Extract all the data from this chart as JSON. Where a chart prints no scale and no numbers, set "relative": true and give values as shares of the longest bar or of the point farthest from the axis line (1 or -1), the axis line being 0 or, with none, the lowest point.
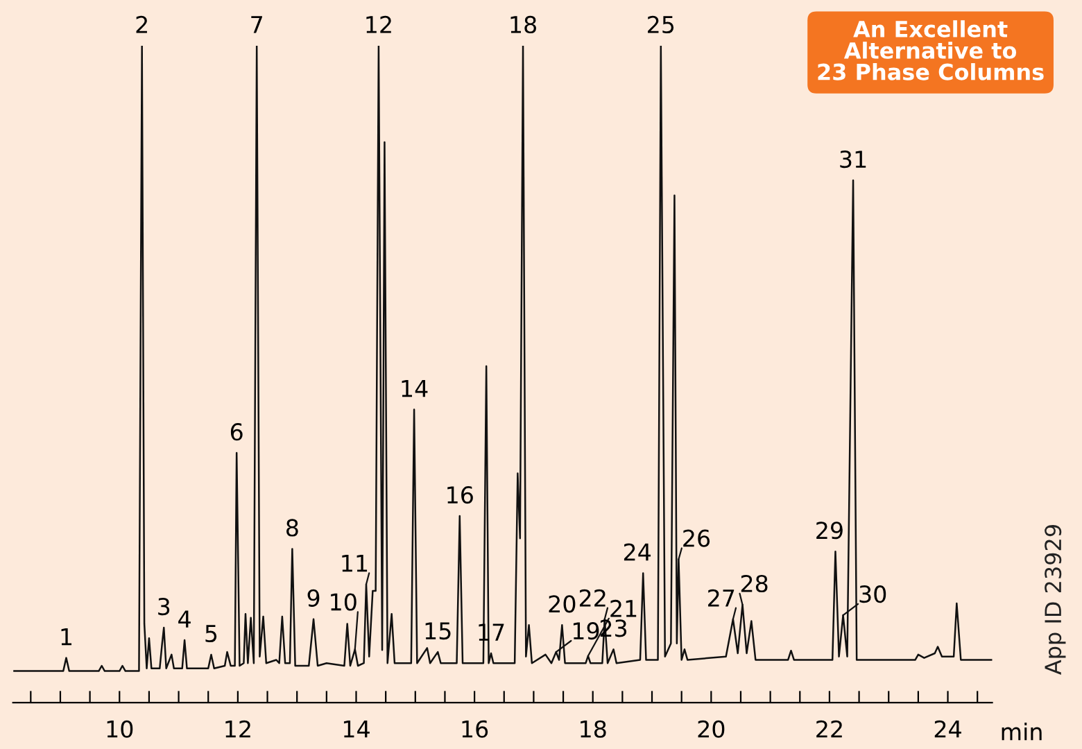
{
  "chart_data": {
    "type": "line",
    "relative": true,
    "xlabel": "min",
    "color": "#111111",
    "grid": false,
    "legend": false,
    "marker": "none",
    "line_style": "solid",
    "xlim": [
      8.2,
      24.75
    ],
    "xticks": [
      {
        "value": 8.5,
        "label": null
      },
      {
        "value": 9,
        "label": null
      },
      {
        "value": 9.5,
        "label": null
      },
      10,
      {
        "value": 10.5,
        "label": null
      },
      {
        "value": 11,
        "label": null
      },
      {
        "value": 11.5,
        "label": null
      },
      12,
      {
        "value": 12.5,
        "label": null
      },
      {
        "value": 13,
        "label": null
      },
      {
        "value": 13.5,
        "label": null
      },
      14,
      {
        "value": 14.5,
        "label": null
      },
      {
        "value": 15,
        "label": null
      },
      {
        "value": 15.5,
        "label": null
      },
      16,
      {
        "value": 16.5,
        "label": null
      },
      {
        "value": 17,
        "label": null
      },
      {
        "value": 17.5,
        "label": null
      },
      18,
      {
        "value": 18.5,
        "label": null
      },
      {
        "value": 19,
        "label": null
      },
      {
        "value": 19.5,
        "label": null
      },
      20,
      {
        "value": 20.5,
        "label": null
      },
      {
        "value": 21,
        "label": null
      },
      {
        "value": 21.5,
        "label": null
      },
      22,
      {
        "value": 22.5,
        "label": null
      },
      {
        "value": 23,
        "label": null
      },
      {
        "value": 23.5,
        "label": null
      },
      24,
      {
        "value": 24.5,
        "label": null
      }
    ],
    "x": [
      8.22,
      9.05,
      9.1,
      9.15,
      9.65,
      9.7,
      9.75,
      10.0,
      10.05,
      10.1,
      10.33,
      10.38,
      10.42,
      10.46,
      10.5,
      10.54,
      10.68,
      10.72,
      10.75,
      10.79,
      10.88,
      10.92,
      11.06,
      11.1,
      11.14,
      11.5,
      11.55,
      11.6,
      11.78,
      11.82,
      11.88,
      11.95,
      11.98,
      12.03,
      12.1,
      12.13,
      12.17,
      12.22,
      12.27,
      12.32,
      12.37,
      12.43,
      12.48,
      12.65,
      12.7,
      12.75,
      12.8,
      12.88,
      12.92,
      12.97,
      13.2,
      13.28,
      13.35,
      13.5,
      13.8,
      13.85,
      13.9,
      13.98,
      14.03,
      14.13,
      14.17,
      14.22,
      14.28,
      14.33,
      14.38,
      14.44,
      14.48,
      14.53,
      14.6,
      14.65,
      14.93,
      14.98,
      15.03,
      15.2,
      15.25,
      15.38,
      15.43,
      15.7,
      15.75,
      15.8,
      16.15,
      16.2,
      16.24,
      16.28,
      16.32,
      16.68,
      16.73,
      16.77,
      16.82,
      16.87,
      16.92,
      16.97,
      17.2,
      17.3,
      17.38,
      17.43,
      17.48,
      17.53,
      17.88,
      17.92,
      17.96,
      18.16,
      18.2,
      18.25,
      18.35,
      18.4,
      18.8,
      18.85,
      18.9,
      19.1,
      19.15,
      19.22,
      19.32,
      19.38,
      19.42,
      19.45,
      19.5,
      19.55,
      19.6,
      20.25,
      20.37,
      20.45,
      20.53,
      20.6,
      20.68,
      20.75,
      21.3,
      21.35,
      21.4,
      22.05,
      22.1,
      22.16,
      22.23,
      22.3,
      22.4,
      22.46,
      23.45,
      23.5,
      23.6,
      23.78,
      23.83,
      23.9,
      24.1,
      24.15,
      24.22,
      24.74
    ],
    "values": [
      0.048,
      0.048,
      0.068,
      0.048,
      0.048,
      0.056,
      0.048,
      0.048,
      0.056,
      0.048,
      0.048,
      1.0,
      0.12,
      0.052,
      0.098,
      0.052,
      0.052,
      0.089,
      0.114,
      0.052,
      0.073,
      0.052,
      0.052,
      0.095,
      0.052,
      0.052,
      0.073,
      0.052,
      0.056,
      0.077,
      0.056,
      0.056,
      0.38,
      0.056,
      0.06,
      0.135,
      0.06,
      0.129,
      0.06,
      1.0,
      0.07,
      0.131,
      0.06,
      0.065,
      0.06,
      0.131,
      0.06,
      0.06,
      0.234,
      0.056,
      0.056,
      0.127,
      0.056,
      0.06,
      0.056,
      0.12,
      0.056,
      0.081,
      0.056,
      0.06,
      0.18,
      0.07,
      0.17,
      0.17,
      1.0,
      0.08,
      0.853,
      0.06,
      0.135,
      0.06,
      0.06,
      0.446,
      0.06,
      0.083,
      0.06,
      0.077,
      0.06,
      0.06,
      0.284,
      0.06,
      0.06,
      0.512,
      0.06,
      0.075,
      0.06,
      0.06,
      0.349,
      0.25,
      1.0,
      0.07,
      0.118,
      0.06,
      0.073,
      0.06,
      0.077,
      0.065,
      0.118,
      0.06,
      0.06,
      0.071,
      0.06,
      0.06,
      0.127,
      0.06,
      0.081,
      0.06,
      0.065,
      0.197,
      0.065,
      0.065,
      1.0,
      0.07,
      0.09,
      0.772,
      0.09,
      0.218,
      0.065,
      0.081,
      0.065,
      0.07,
      0.127,
      0.075,
      0.149,
      0.075,
      0.124,
      0.065,
      0.065,
      0.079,
      0.065,
      0.065,
      0.23,
      0.07,
      0.133,
      0.07,
      0.795,
      0.065,
      0.065,
      0.073,
      0.068,
      0.075,
      0.085,
      0.07,
      0.07,
      0.151,
      0.065,
      0.065
    ],
    "annotations": [
      {
        "text": "1",
        "x": 9.1,
        "y": 0.068
      },
      {
        "text": "2",
        "x": 10.38,
        "y": 1.0
      },
      {
        "text": "3",
        "x": 10.75,
        "y": 0.114
      },
      {
        "text": "4",
        "x": 11.1,
        "y": 0.095
      },
      {
        "text": "5",
        "x": 11.55,
        "y": 0.073
      },
      {
        "text": "6",
        "x": 11.98,
        "y": 0.38
      },
      {
        "text": "7",
        "x": 12.32,
        "y": 1.0
      },
      {
        "text": "8",
        "x": 12.92,
        "y": 0.234
      },
      {
        "text": "9",
        "x": 13.28,
        "y": 0.127
      },
      {
        "text": "10",
        "x": 13.98,
        "y": 0.081
      },
      {
        "text": "11",
        "x": 14.17,
        "y": 0.18
      },
      {
        "text": "12",
        "x": 14.38,
        "y": 1.0
      },
      {
        "text": "14",
        "x": 14.98,
        "y": 0.446
      },
      {
        "text": "15",
        "x": 15.38,
        "y": 0.077
      },
      {
        "text": "16",
        "x": 15.75,
        "y": 0.284
      },
      {
        "text": "17",
        "x": 16.28,
        "y": 0.075
      },
      {
        "text": "18",
        "x": 16.82,
        "y": 1.0
      },
      {
        "text": "19",
        "x": 17.38,
        "y": 0.077
      },
      {
        "text": "20",
        "x": 17.48,
        "y": 0.118
      },
      {
        "text": "21",
        "x": 17.92,
        "y": 0.071
      },
      {
        "text": "22",
        "x": 18.2,
        "y": 0.127
      },
      {
        "text": "23",
        "x": 18.35,
        "y": 0.081
      },
      {
        "text": "24",
        "x": 18.85,
        "y": 0.197
      },
      {
        "text": "25",
        "x": 19.15,
        "y": 1.0
      },
      {
        "text": "26",
        "x": 19.45,
        "y": 0.218
      },
      {
        "text": "27",
        "x": 20.37,
        "y": 0.127
      },
      {
        "text": "28",
        "x": 20.53,
        "y": 0.149
      },
      {
        "text": "29",
        "x": 22.1,
        "y": 0.23
      },
      {
        "text": "30",
        "x": 22.23,
        "y": 0.133
      },
      {
        "text": "31",
        "x": 22.4,
        "y": 0.795
      },
      "An Excellent\nAlternative to\n23 Phase Columns",
      "App ID 23929"
    ]
  }
}
